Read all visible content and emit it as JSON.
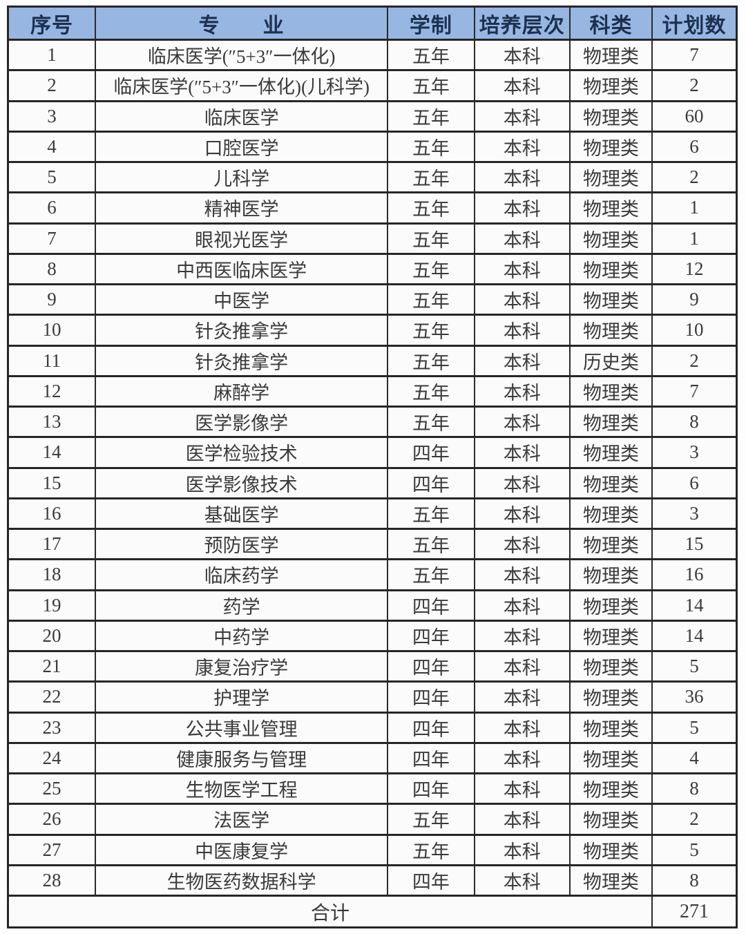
{
  "table": {
    "columns": [
      "序号",
      "专　　业",
      "学制",
      "培养层次",
      "科类",
      "计划数"
    ],
    "rows": [
      {
        "no": "1",
        "major": "临床医学(″5+3″一体化)",
        "duration": "五年",
        "level": "本科",
        "category": "物理类",
        "plan": "7"
      },
      {
        "no": "2",
        "major": "临床医学(″5+3″一体化)(儿科学)",
        "duration": "五年",
        "level": "本科",
        "category": "物理类",
        "plan": "2"
      },
      {
        "no": "3",
        "major": "临床医学",
        "duration": "五年",
        "level": "本科",
        "category": "物理类",
        "plan": "60"
      },
      {
        "no": "4",
        "major": "口腔医学",
        "duration": "五年",
        "level": "本科",
        "category": "物理类",
        "plan": "6"
      },
      {
        "no": "5",
        "major": "儿科学",
        "duration": "五年",
        "level": "本科",
        "category": "物理类",
        "plan": "2"
      },
      {
        "no": "6",
        "major": "精神医学",
        "duration": "五年",
        "level": "本科",
        "category": "物理类",
        "plan": "1"
      },
      {
        "no": "7",
        "major": "眼视光医学",
        "duration": "五年",
        "level": "本科",
        "category": "物理类",
        "plan": "1"
      },
      {
        "no": "8",
        "major": "中西医临床医学",
        "duration": "五年",
        "level": "本科",
        "category": "物理类",
        "plan": "12"
      },
      {
        "no": "9",
        "major": "中医学",
        "duration": "五年",
        "level": "本科",
        "category": "物理类",
        "plan": "9"
      },
      {
        "no": "10",
        "major": "针灸推拿学",
        "duration": "五年",
        "level": "本科",
        "category": "物理类",
        "plan": "10"
      },
      {
        "no": "11",
        "major": "针灸推拿学",
        "duration": "五年",
        "level": "本科",
        "category": "历史类",
        "plan": "2"
      },
      {
        "no": "12",
        "major": "麻醉学",
        "duration": "五年",
        "level": "本科",
        "category": "物理类",
        "plan": "7"
      },
      {
        "no": "13",
        "major": "医学影像学",
        "duration": "五年",
        "level": "本科",
        "category": "物理类",
        "plan": "8"
      },
      {
        "no": "14",
        "major": "医学检验技术",
        "duration": "四年",
        "level": "本科",
        "category": "物理类",
        "plan": "3"
      },
      {
        "no": "15",
        "major": "医学影像技术",
        "duration": "四年",
        "level": "本科",
        "category": "物理类",
        "plan": "6"
      },
      {
        "no": "16",
        "major": "基础医学",
        "duration": "五年",
        "level": "本科",
        "category": "物理类",
        "plan": "3"
      },
      {
        "no": "17",
        "major": "预防医学",
        "duration": "五年",
        "level": "本科",
        "category": "物理类",
        "plan": "15"
      },
      {
        "no": "18",
        "major": "临床药学",
        "duration": "五年",
        "level": "本科",
        "category": "物理类",
        "plan": "16"
      },
      {
        "no": "19",
        "major": "药学",
        "duration": "四年",
        "level": "本科",
        "category": "物理类",
        "plan": "14"
      },
      {
        "no": "20",
        "major": "中药学",
        "duration": "四年",
        "level": "本科",
        "category": "物理类",
        "plan": "14"
      },
      {
        "no": "21",
        "major": "康复治疗学",
        "duration": "四年",
        "level": "本科",
        "category": "物理类",
        "plan": "5"
      },
      {
        "no": "22",
        "major": "护理学",
        "duration": "四年",
        "level": "本科",
        "category": "物理类",
        "plan": "36"
      },
      {
        "no": "23",
        "major": "公共事业管理",
        "duration": "四年",
        "level": "本科",
        "category": "物理类",
        "plan": "5"
      },
      {
        "no": "24",
        "major": "健康服务与管理",
        "duration": "四年",
        "level": "本科",
        "category": "物理类",
        "plan": "4"
      },
      {
        "no": "25",
        "major": "生物医学工程",
        "duration": "四年",
        "level": "本科",
        "category": "物理类",
        "plan": "8"
      },
      {
        "no": "26",
        "major": "法医学",
        "duration": "五年",
        "level": "本科",
        "category": "物理类",
        "plan": "2"
      },
      {
        "no": "27",
        "major": "中医康复学",
        "duration": "五年",
        "level": "本科",
        "category": "物理类",
        "plan": "5"
      },
      {
        "no": "28",
        "major": "生物医药数据科学",
        "duration": "四年",
        "level": "本科",
        "category": "物理类",
        "plan": "8"
      }
    ],
    "footer": {
      "label": "合计",
      "total": "271"
    }
  },
  "colors": {
    "header_bg": "#97b7e2",
    "header_text": "#1d3050",
    "border": "#262626",
    "body_text": "#3a3a3a",
    "cell_bg": "#fbfbfb"
  }
}
